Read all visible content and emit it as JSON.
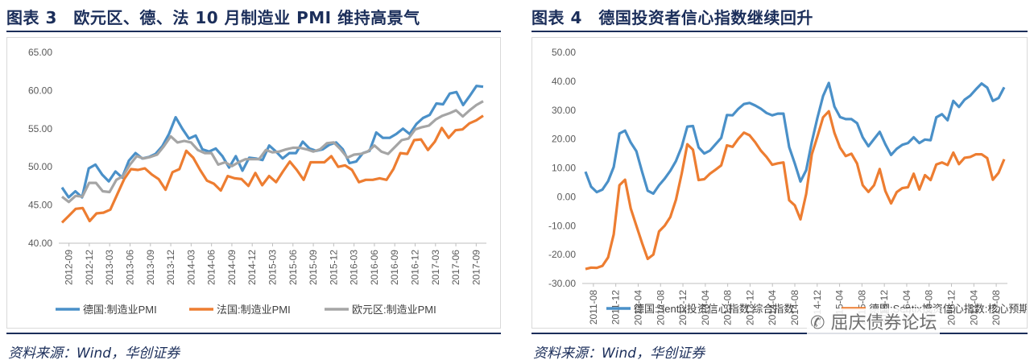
{
  "left_panel": {
    "title": "图表 3　欧元区、德、法 10 月制造业 PMI 维持高景气",
    "source": "资料来源：Wind，华创证券"
  },
  "right_panel": {
    "title": "图表 4　德国投资者信心指数继续回升",
    "source": "资料来源：Wind，华创证券"
  },
  "watermark": "屈庆债券论坛",
  "chart_data": [
    {
      "type": "line",
      "ylim": [
        40,
        65
      ],
      "yticks": [
        "40.00",
        "45.00",
        "50.00",
        "55.00",
        "60.00",
        "65.00"
      ],
      "xtick_labels": [
        "2012-09",
        "2012-12",
        "2013-03",
        "2013-06",
        "2013-09",
        "2013-12",
        "2014-03",
        "2014-06",
        "2014-09",
        "2014-12",
        "2015-03",
        "2015-06",
        "2015-09",
        "2015-12",
        "2016-03",
        "2016-06",
        "2016-09",
        "2016-12",
        "2017-03",
        "2017-06",
        "2017-09"
      ],
      "legend_position": "bottom",
      "series": [
        {
          "name": "德国:制造业PMI",
          "color": "#4a90c8",
          "values": [
            47.3,
            46.0,
            46.8,
            46.0,
            49.8,
            50.3,
            49.0,
            48.1,
            49.4,
            48.6,
            50.8,
            51.8,
            51.1,
            51.3,
            51.7,
            52.7,
            54.3,
            56.5,
            55.0,
            53.7,
            54.1,
            52.3,
            52.0,
            52.4,
            51.4,
            49.9,
            51.4,
            49.5,
            51.2,
            51.1,
            50.9,
            52.8,
            52.0,
            51.1,
            51.8,
            51.8,
            53.3,
            52.4,
            52.1,
            52.3,
            52.9,
            53.2,
            52.3,
            50.5,
            50.7,
            51.8,
            52.1,
            54.5,
            53.8,
            53.8,
            54.3,
            55.0,
            54.3,
            55.6,
            56.4,
            56.8,
            58.3,
            58.2,
            59.6,
            59.8,
            58.1,
            59.3,
            60.6,
            60.5
          ]
        },
        {
          "name": "法国:制造业PMI",
          "color": "#ed7d31",
          "values": [
            42.7,
            43.6,
            44.5,
            44.6,
            42.9,
            43.9,
            44.0,
            44.4,
            46.4,
            48.4,
            49.7,
            49.6,
            49.8,
            49.0,
            48.4,
            47.0,
            49.3,
            49.7,
            52.1,
            51.2,
            49.6,
            48.2,
            47.8,
            46.9,
            48.8,
            48.5,
            48.4,
            47.5,
            49.2,
            47.6,
            48.8,
            48.0,
            49.4,
            50.7,
            49.6,
            48.3,
            50.6,
            50.6,
            50.6,
            51.4,
            50.0,
            50.2,
            49.6,
            48.0,
            48.3,
            48.3,
            48.5,
            48.3,
            49.7,
            51.8,
            51.7,
            53.5,
            53.6,
            52.2,
            53.3,
            55.1,
            53.8,
            54.8,
            54.9,
            55.7,
            56.1,
            56.7
          ]
        },
        {
          "name": "欧元区:制造业PMI",
          "color": "#a5a5a5",
          "values": [
            46.1,
            45.4,
            46.2,
            46.1,
            47.9,
            47.9,
            46.8,
            46.7,
            48.3,
            48.8,
            50.3,
            51.4,
            51.1,
            51.3,
            51.6,
            52.7,
            54.0,
            53.2,
            53.4,
            53.2,
            52.2,
            51.8,
            51.8,
            50.3,
            50.6,
            50.1,
            50.6,
            51.0,
            51.0,
            51.0,
            52.2,
            51.9,
            52.0,
            52.3,
            52.5,
            52.5,
            52.3,
            52.0,
            52.3,
            53.1,
            53.2,
            52.3,
            51.2,
            51.6,
            51.7,
            52.0,
            52.8,
            52.0,
            51.7,
            52.6,
            53.5,
            53.7,
            54.9,
            55.2,
            55.4,
            56.2,
            56.7,
            57.0,
            57.4,
            56.6,
            57.4,
            58.1,
            58.6
          ]
        }
      ]
    },
    {
      "type": "line",
      "ylim": [
        -30,
        50
      ],
      "yticks": [
        "-30.00",
        "-20.00",
        "-10.00",
        "0.00",
        "10.00",
        "20.00",
        "30.00",
        "40.00",
        "50.00"
      ],
      "xtick_labels": [
        "2011-08",
        "2011-12",
        "2012-04",
        "2012-08",
        "2012-12",
        "2013-04",
        "2013-08",
        "2013-12",
        "2014-04",
        "2014-08",
        "2014-12",
        "2015-04",
        "2015-08",
        "2015-12",
        "2016-04",
        "2016-08",
        "2016-12",
        "2017-04",
        "2017-08"
      ],
      "legend_position": "bottom",
      "series": [
        {
          "name": "德国:Sentix投资信心指数:综合指数",
          "color": "#4a90c8",
          "values": [
            8.7,
            3.5,
            1.6,
            2.5,
            5.4,
            10.3,
            21.9,
            22.9,
            18.8,
            15.8,
            8.7,
            2.1,
            1.1,
            4.0,
            6.3,
            9.0,
            12.4,
            17.3,
            24.3,
            24.5,
            17.1,
            15.0,
            16.0,
            18.2,
            20.4,
            28.3,
            28.2,
            30.4,
            32.1,
            32.5,
            31.6,
            30.5,
            29.0,
            28.2,
            28.8,
            28.8,
            17.2,
            11.5,
            5.3,
            9.2,
            19.0,
            27.4,
            34.9,
            39.4,
            31.2,
            27.6,
            26.9,
            26.9,
            25.5,
            20.6,
            17.5,
            20.0,
            22.5,
            18.2,
            14.5,
            16.6,
            18.0,
            18.6,
            20.6,
            18.6,
            19.8,
            19.6,
            27.5,
            28.6,
            26.5,
            33.2,
            31.1,
            33.6,
            35.0,
            37.2,
            39.2,
            37.8,
            33.2,
            34.2,
            37.9
          ]
        },
        {
          "name": "德国:Sentix投资信心指数:核心预期指数",
          "color": "#ed7d31",
          "values": [
            -25.0,
            -24.5,
            -24.6,
            -23.9,
            -21.0,
            -13.0,
            4.0,
            5.9,
            -4.0,
            -10.0,
            -16.0,
            -21.5,
            -20.0,
            -12.0,
            -10.0,
            -7.0,
            -1.0,
            8.0,
            18.2,
            16.3,
            5.8,
            6.1,
            8.0,
            9.4,
            10.9,
            17.8,
            17.3,
            20.0,
            22.2,
            21.3,
            18.9,
            16.0,
            13.8,
            11.1,
            11.6,
            11.9,
            -1.2,
            -3.0,
            -7.8,
            1.0,
            14.7,
            20.9,
            27.5,
            29.6,
            22.1,
            17.0,
            14.1,
            14.9,
            11.5,
            4.0,
            1.7,
            4.0,
            9.6,
            2.0,
            -2.3,
            1.6,
            3.0,
            3.3,
            8.0,
            2.5,
            7.5,
            5.8,
            11.2,
            11.9,
            11.0,
            15.3,
            11.3,
            13.5,
            13.8,
            14.7,
            14.7,
            13.4,
            5.9,
            8.3,
            13.0
          ]
        }
      ]
    }
  ]
}
